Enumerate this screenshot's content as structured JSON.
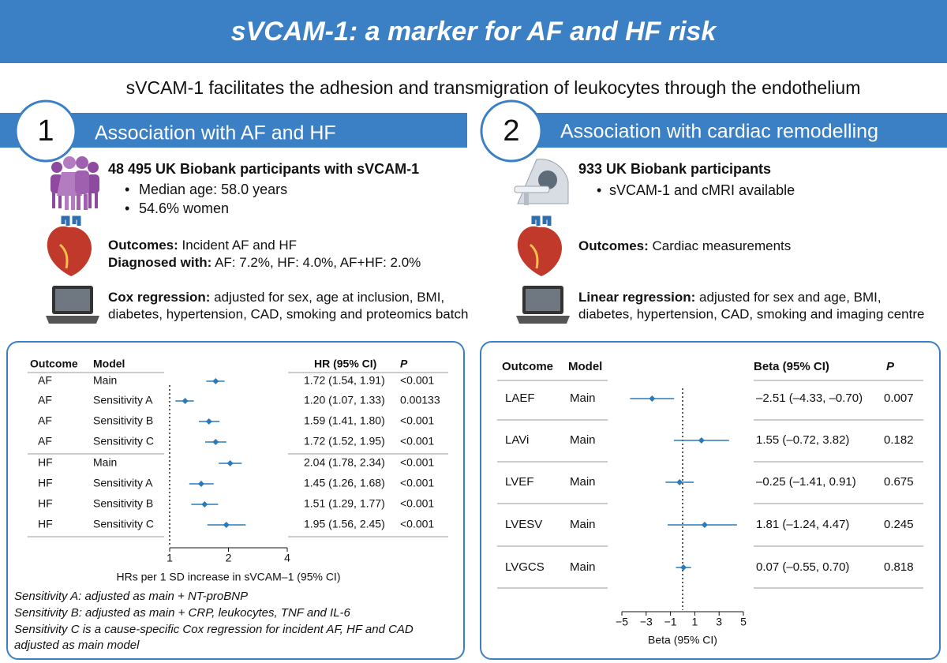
{
  "header": {
    "title": "sVCAM-1: a marker for AF and HF risk",
    "subtitle": "sVCAM-1 facilitates the adhesion and transmigration of leukocytes through the endothelium"
  },
  "sections": [
    {
      "number": "1",
      "title": "Association with AF and HF",
      "participants": {
        "heading": "48 495 UK Biobank participants with sVCAM-1",
        "bullets": [
          "Median age: 58.0 years",
          "54.6% women"
        ]
      },
      "outcomes": [
        {
          "label": "Outcomes:",
          "text": " Incident AF and HF"
        },
        {
          "label": "Diagnosed with:",
          "text": " AF: 7.2%, HF: 4.0%, AF+HF: 2.0%"
        }
      ],
      "regression": {
        "label": "Cox regression:",
        "lines": [
          " adjusted for sex, age at inclusion, BMI,",
          "diabetes, hypertension, CAD, smoking and proteomics batch"
        ]
      }
    },
    {
      "number": "2",
      "title": "Association with cardiac remodelling",
      "participants": {
        "heading": "933 UK Biobank participants",
        "bullets": [
          "sVCAM-1 and cMRI available"
        ]
      },
      "outcomes": [
        {
          "label": "Outcomes:",
          "text": " Cardiac measurements"
        }
      ],
      "regression": {
        "label": "Linear regression:",
        "lines": [
          " adjusted for sex and age, BMI,",
          "diabetes, hypertension, CAD, smoking and imaging centre"
        ]
      }
    }
  ],
  "chart_data": [
    {
      "type": "forest",
      "log_x": true,
      "color": "#2b7bb9",
      "columns": [
        "Outcome",
        "Model",
        "HR (95% CI)",
        "P"
      ],
      "rows": [
        {
          "outcome": "AF",
          "model": "Main",
          "estimate": 1.72,
          "lower": 1.54,
          "upper": 1.91,
          "ci_label": "1.72 (1.54, 1.91)",
          "p": "<0.001"
        },
        {
          "outcome": "AF",
          "model": "Sensitivity A",
          "estimate": 1.2,
          "lower": 1.07,
          "upper": 1.33,
          "ci_label": "1.20 (1.07, 1.33)",
          "p": 0.00133
        },
        {
          "outcome": "AF",
          "model": "Sensitivity B",
          "estimate": 1.59,
          "lower": 1.41,
          "upper": 1.8,
          "ci_label": "1.59 (1.41, 1.80)",
          "p": "<0.001"
        },
        {
          "outcome": "AF",
          "model": "Sensitivity C",
          "estimate": 1.72,
          "lower": 1.52,
          "upper": 1.95,
          "ci_label": "1.72 (1.52, 1.95)",
          "p": "<0.001"
        },
        {
          "outcome": "HF",
          "model": "Main",
          "estimate": 2.04,
          "lower": 1.78,
          "upper": 2.34,
          "ci_label": "2.04 (1.78, 2.34)",
          "p": "<0.001"
        },
        {
          "outcome": "HF",
          "model": "Sensitivity A",
          "estimate": 1.45,
          "lower": 1.26,
          "upper": 1.68,
          "ci_label": "1.45 (1.26, 1.68)",
          "p": "<0.001"
        },
        {
          "outcome": "HF",
          "model": "Sensitivity B",
          "estimate": 1.51,
          "lower": 1.29,
          "upper": 1.77,
          "ci_label": "1.51 (1.29, 1.77)",
          "p": "<0.001"
        },
        {
          "outcome": "HF",
          "model": "Sensitivity C",
          "estimate": 1.95,
          "lower": 1.56,
          "upper": 2.45,
          "ci_label": "1.95 (1.56, 2.45)",
          "p": "<0.001"
        }
      ],
      "xlim": [
        1,
        4
      ],
      "xticks": [
        1,
        2,
        4
      ],
      "reference": 1,
      "xlabel": "HRs per 1 SD increase in sVCAM–1 (95% CI)",
      "notes": [
        "Sensitivity A: adjusted as main + NT-proBNP",
        "Sensitivity B: adjusted as main + CRP, leukocytes, TNF and IL-6",
        "Sensitivity C is a cause-specific Cox regression for incident AF, HF and CAD",
        "adjusted as main model"
      ]
    },
    {
      "type": "forest",
      "log_x": false,
      "color": "#2b7bb9",
      "columns": [
        "Outcome",
        "Model",
        "Beta (95% CI)",
        "P"
      ],
      "rows": [
        {
          "outcome": "LAEF",
          "model": "Main",
          "estimate": -2.51,
          "lower": -4.33,
          "upper": -0.7,
          "ci_label": "–2.51 (–4.33, –0.70)",
          "p": 0.007
        },
        {
          "outcome": "LAVi",
          "model": "Main",
          "estimate": 1.55,
          "lower": -0.72,
          "upper": 3.82,
          "ci_label": "1.55 (–0.72, 3.82)",
          "p": 0.182
        },
        {
          "outcome": "LVEF",
          "model": "Main",
          "estimate": -0.25,
          "lower": -1.41,
          "upper": 0.91,
          "ci_label": "–0.25 (–1.41, 0.91)",
          "p": 0.675
        },
        {
          "outcome": "LVESV",
          "model": "Main",
          "estimate": 1.81,
          "lower": -1.24,
          "upper": 4.47,
          "ci_label": "1.81 (–1.24, 4.47)",
          "p": 0.245
        },
        {
          "outcome": "LVGCS",
          "model": "Main",
          "estimate": 0.07,
          "lower": -0.55,
          "upper": 0.7,
          "ci_label": "0.07 (–0.55, 0.70)",
          "p": 0.818
        }
      ],
      "xlim": [
        -5,
        5
      ],
      "xticks": [
        {
          "value": -5,
          "label": "−5"
        },
        {
          "value": -3,
          "label": "−3"
        },
        {
          "value": -1,
          "label": "−1"
        },
        1,
        3,
        5
      ],
      "reference": 0,
      "xlabel": "Beta (95% CI)"
    }
  ]
}
